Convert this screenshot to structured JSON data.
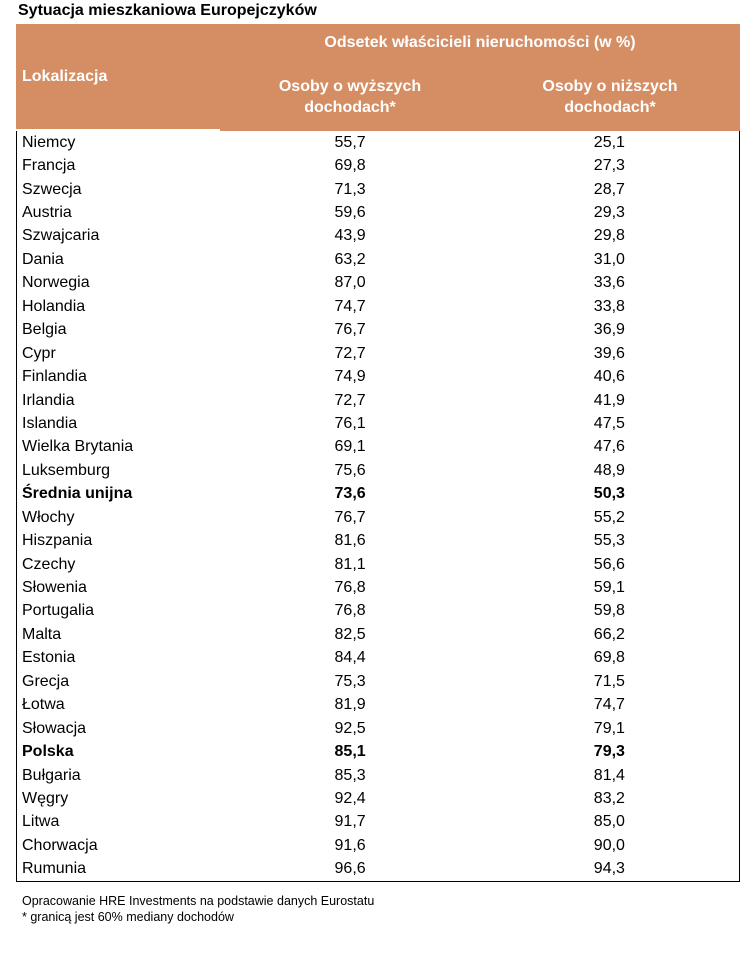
{
  "title": "Sytuacja mieszkaniowa Europejczyków",
  "header": {
    "location": "Lokalizacja",
    "group": "Odsetek właścicieli nieruchomości (w %)",
    "col1": [
      "Osoby o wyższych",
      "dochodach*"
    ],
    "col2": [
      "Osoby o niższych",
      "dochodach*"
    ]
  },
  "rows": [
    {
      "name": "Niemcy",
      "v1": "55,7",
      "v2": "25,1",
      "bold": false
    },
    {
      "name": "Francja",
      "v1": "69,8",
      "v2": "27,3",
      "bold": false
    },
    {
      "name": "Szwecja",
      "v1": "71,3",
      "v2": "28,7",
      "bold": false
    },
    {
      "name": "Austria",
      "v1": "59,6",
      "v2": "29,3",
      "bold": false
    },
    {
      "name": "Szwajcaria",
      "v1": "43,9",
      "v2": "29,8",
      "bold": false
    },
    {
      "name": "Dania",
      "v1": "63,2",
      "v2": "31,0",
      "bold": false
    },
    {
      "name": "Norwegia",
      "v1": "87,0",
      "v2": "33,6",
      "bold": false
    },
    {
      "name": "Holandia",
      "v1": "74,7",
      "v2": "33,8",
      "bold": false
    },
    {
      "name": "Belgia",
      "v1": "76,7",
      "v2": "36,9",
      "bold": false
    },
    {
      "name": "Cypr",
      "v1": "72,7",
      "v2": "39,6",
      "bold": false
    },
    {
      "name": "Finlandia",
      "v1": "74,9",
      "v2": "40,6",
      "bold": false
    },
    {
      "name": "Irlandia",
      "v1": "72,7",
      "v2": "41,9",
      "bold": false
    },
    {
      "name": "Islandia",
      "v1": "76,1",
      "v2": "47,5",
      "bold": false
    },
    {
      "name": "Wielka Brytania",
      "v1": "69,1",
      "v2": "47,6",
      "bold": false
    },
    {
      "name": "Luksemburg",
      "v1": "75,6",
      "v2": "48,9",
      "bold": false
    },
    {
      "name": "Średnia unijna",
      "v1": "73,6",
      "v2": "50,3",
      "bold": true
    },
    {
      "name": "Włochy",
      "v1": "76,7",
      "v2": "55,2",
      "bold": false
    },
    {
      "name": "Hiszpania",
      "v1": "81,6",
      "v2": "55,3",
      "bold": false
    },
    {
      "name": "Czechy",
      "v1": "81,1",
      "v2": "56,6",
      "bold": false
    },
    {
      "name": "Słowenia",
      "v1": "76,8",
      "v2": "59,1",
      "bold": false
    },
    {
      "name": "Portugalia",
      "v1": "76,8",
      "v2": "59,8",
      "bold": false
    },
    {
      "name": "Malta",
      "v1": "82,5",
      "v2": "66,2",
      "bold": false
    },
    {
      "name": "Estonia",
      "v1": "84,4",
      "v2": "69,8",
      "bold": false
    },
    {
      "name": "Grecja",
      "v1": "75,3",
      "v2": "71,5",
      "bold": false
    },
    {
      "name": "Łotwa",
      "v1": "81,9",
      "v2": "74,7",
      "bold": false
    },
    {
      "name": "Słowacja",
      "v1": "92,5",
      "v2": "79,1",
      "bold": false
    },
    {
      "name": "Polska",
      "v1": "85,1",
      "v2": "79,3",
      "bold": true
    },
    {
      "name": "Bułgaria",
      "v1": "85,3",
      "v2": "81,4",
      "bold": false
    },
    {
      "name": "Węgry",
      "v1": "92,4",
      "v2": "83,2",
      "bold": false
    },
    {
      "name": "Litwa",
      "v1": "91,7",
      "v2": "85,0",
      "bold": false
    },
    {
      "name": "Chorwacja",
      "v1": "91,6",
      "v2": "90,0",
      "bold": false
    },
    {
      "name": "Rumunia",
      "v1": "96,6",
      "v2": "94,3",
      "bold": false
    }
  ],
  "notes": [
    "Opracowanie HRE Investments na podstawie danych Eurostatu",
    "* granicą jest 60% mediany dochodów"
  ]
}
